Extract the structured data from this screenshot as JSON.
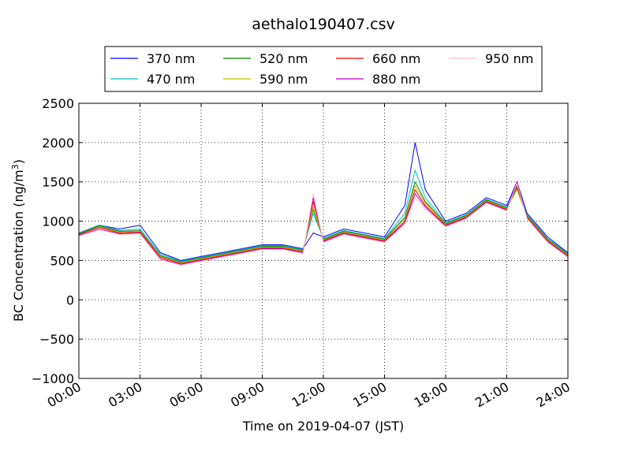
{
  "chart_data": {
    "type": "line",
    "title": "aethalo190407.csv",
    "xlabel": "Time on 2019-04-07 (JST)",
    "ylabel": "BC Concentration (ng/m",
    "ylabel_sup": "3",
    "ylabel_end": ")",
    "xlim": [
      "00:00",
      "24:00"
    ],
    "ylim": [
      -1000,
      2500
    ],
    "x_ticks": [
      "00:00",
      "03:00",
      "06:00",
      "09:00",
      "12:00",
      "15:00",
      "18:00",
      "21:00",
      "24:00"
    ],
    "y_ticks": [
      "2500",
      "2000",
      "1500",
      "1000",
      "500",
      "0",
      "−500",
      "−1000"
    ],
    "grid": true,
    "legend_position": "top",
    "x_hours": [
      0,
      1,
      2,
      3,
      4,
      5,
      6,
      7,
      8,
      9,
      10,
      11,
      11.5,
      12,
      13,
      14,
      15,
      16,
      16.5,
      17,
      18,
      19,
      20,
      21,
      21.5,
      22,
      23,
      24
    ],
    "series": [
      {
        "name": "370 nm",
        "color": "#0000ff",
        "values": [
          850,
          950,
          900,
          950,
          600,
          500,
          550,
          600,
          650,
          700,
          700,
          650,
          850,
          800,
          900,
          850,
          800,
          1200,
          2000,
          1400,
          1000,
          1100,
          1300,
          1200,
          1500,
          1100,
          800,
          600
        ]
      },
      {
        "name": "470 nm",
        "color": "#00bfbf",
        "values": [
          850,
          950,
          880,
          900,
          580,
          490,
          540,
          590,
          640,
          690,
          690,
          640,
          1100,
          780,
          880,
          830,
          780,
          1100,
          1650,
          1300,
          980,
          1080,
          1280,
          1180,
          1450,
          1080,
          780,
          590
        ]
      },
      {
        "name": "520 nm",
        "color": "#008000",
        "values": [
          840,
          940,
          870,
          880,
          560,
          480,
          530,
          580,
          630,
          680,
          680,
          630,
          1150,
          770,
          870,
          820,
          770,
          1050,
          1500,
          1250,
          970,
          1070,
          1270,
          1170,
          1420,
          1070,
          770,
          580
        ]
      },
      {
        "name": "590 nm",
        "color": "#bfbf00",
        "values": [
          830,
          930,
          860,
          870,
          550,
          470,
          520,
          570,
          620,
          670,
          670,
          620,
          1180,
          760,
          860,
          810,
          760,
          1030,
          1450,
          1230,
          960,
          1060,
          1260,
          1160,
          1400,
          1060,
          760,
          570
        ]
      },
      {
        "name": "660 nm",
        "color": "#ff0000",
        "values": [
          830,
          920,
          850,
          860,
          540,
          460,
          510,
          560,
          610,
          660,
          660,
          610,
          1250,
          750,
          850,
          800,
          750,
          1000,
          1400,
          1200,
          950,
          1050,
          1250,
          1150,
          1450,
          1050,
          750,
          560
        ]
      },
      {
        "name": "880 nm",
        "color": "#bf00bf",
        "values": [
          820,
          900,
          840,
          850,
          520,
          450,
          500,
          550,
          600,
          650,
          650,
          600,
          1300,
          740,
          840,
          790,
          740,
          980,
          1350,
          1180,
          940,
          1040,
          1240,
          1140,
          1500,
          1040,
          740,
          550
        ]
      },
      {
        "name": "950 nm",
        "color": "#ffc0cb",
        "values": [
          810,
          890,
          830,
          840,
          510,
          440,
          490,
          540,
          590,
          640,
          640,
          590,
          1350,
          730,
          830,
          780,
          730,
          960,
          1300,
          1150,
          930,
          1030,
          1230,
          1130,
          1480,
          1030,
          730,
          540
        ]
      }
    ]
  }
}
